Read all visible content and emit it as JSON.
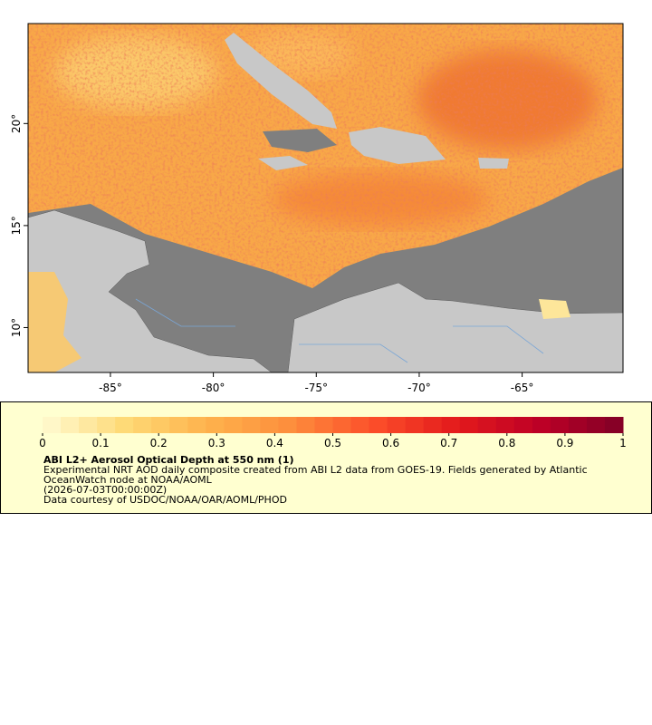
{
  "map": {
    "xlim": [
      -89,
      -60.1
    ],
    "ylim": [
      7.8,
      24.9
    ],
    "xticks": [
      {
        "value": -85,
        "label": "-85°"
      },
      {
        "value": -80,
        "label": "-80°"
      },
      {
        "value": -75,
        "label": "-75°"
      },
      {
        "value": -70,
        "label": "-70°"
      },
      {
        "value": -65,
        "label": "-65°"
      }
    ],
    "yticks": [
      {
        "value": 10,
        "label": "10°"
      },
      {
        "value": 15,
        "label": "15°"
      },
      {
        "value": 20,
        "label": "20°"
      }
    ]
  },
  "legend": {
    "range": [
      0,
      1
    ],
    "ticks": [
      0,
      0.1,
      0.2,
      0.3,
      0.4,
      0.5,
      0.6,
      0.7,
      0.8,
      0.9,
      1
    ],
    "colors": [
      "#fffbd2",
      "#fed976",
      "#feb24c",
      "#fd8d3c",
      "#fc4e2a",
      "#e31a1c",
      "#bd0026",
      "#800026"
    ],
    "title": "ABI L2+ Aerosol Optical Depth at 550 nm (1)",
    "description": [
      "Experimental NRT AOD daily composite created from ABI L2 data from GOES-19. Fields generated by Atlantic",
      "OceanWatch node at NOAA/AOML",
      "(2026-07-03T00:00:00Z)",
      "Data courtesy of USDOC/NOAA/OAR/AOML/PHOD"
    ]
  }
}
